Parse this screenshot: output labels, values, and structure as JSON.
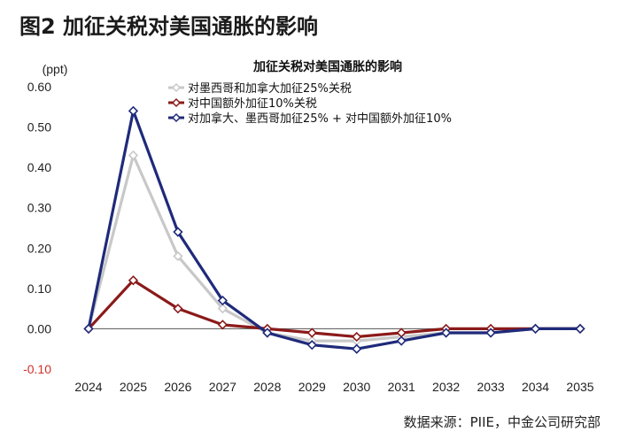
{
  "figure": {
    "title": "图2  加征关税对美国通胀的影响",
    "source": "数据来源：PIIE，中金公司研究部"
  },
  "chart_data": {
    "type": "line",
    "title": "加征关税对美国通胀的影响",
    "ylabel": "(ppt)",
    "xlabel": "",
    "x": [
      "2024",
      "2025",
      "2026",
      "2027",
      "2028",
      "2029",
      "2030",
      "2031",
      "2032",
      "2033",
      "2034",
      "2035"
    ],
    "ylim": [
      -0.1,
      0.6
    ],
    "yticks": [
      "0.60",
      "0.50",
      "0.40",
      "0.30",
      "0.20",
      "0.10",
      "0.00",
      "-0.10"
    ],
    "grid": false,
    "legend_position": "top",
    "series": [
      {
        "name": "对墨西哥和加拿大加征25%关税",
        "color": "#c8c8c8",
        "values": [
          0.0,
          0.43,
          0.18,
          0.05,
          -0.01,
          -0.03,
          -0.03,
          -0.02,
          -0.01,
          -0.01,
          0.0,
          0.0
        ]
      },
      {
        "name": "对中国额外加征10%关税",
        "color": "#8b1a1a",
        "values": [
          0.0,
          0.12,
          0.05,
          0.01,
          0.0,
          -0.01,
          -0.02,
          -0.01,
          0.0,
          0.0,
          0.0,
          0.0
        ]
      },
      {
        "name": "对加拿大、墨西哥加征25% + 对中国额外加征10%",
        "color": "#1f2a7a",
        "values": [
          0.0,
          0.54,
          0.24,
          0.07,
          -0.01,
          -0.04,
          -0.05,
          -0.03,
          -0.01,
          -0.01,
          0.0,
          0.0
        ]
      }
    ]
  }
}
